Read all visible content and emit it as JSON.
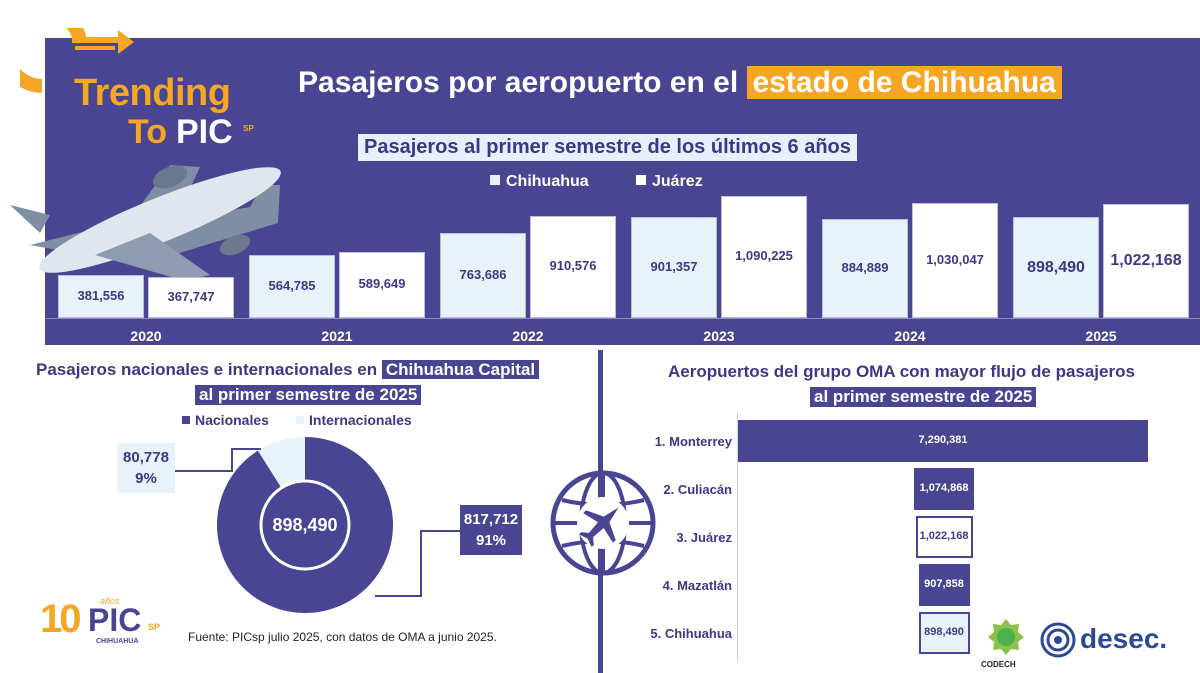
{
  "header": {
    "brand_trending": "Trending",
    "brand_to": "To",
    "brand_pic": "PIC",
    "brand_sp": "SP",
    "title_plain": "Pasajeros por aeropuerto en el",
    "title_highlight": "estado de Chihuahua"
  },
  "chart_data": [
    {
      "type": "bar",
      "title": "Pasajeros al primer semestre de los últimos 6 años",
      "categories": [
        "2020",
        "2021",
        "2022",
        "2023",
        "2024",
        "2025"
      ],
      "series": [
        {
          "name": "Chihuahua",
          "values": [
            381556,
            564785,
            763686,
            901357,
            884889,
            898490
          ],
          "labels": [
            "381,556",
            "564,785",
            "763,686",
            "901,357",
            "884,889",
            "898,490"
          ]
        },
        {
          "name": "Juárez",
          "values": [
            367747,
            589649,
            910576,
            1090225,
            1030047,
            1022168
          ],
          "labels": [
            "367,747",
            "589,649",
            "910,576",
            "1,090,225",
            "1,030,047",
            "1,022,168"
          ]
        }
      ],
      "ylim": [
        0,
        1090225
      ],
      "legend": [
        "Chihuahua",
        "Juárez"
      ],
      "legend_position": "top"
    },
    {
      "type": "pie",
      "title": "Pasajeros nacionales e internacionales en Chihuahua Capital al primer semestre de 2025",
      "title_plain": "Pasajeros nacionales e internacionales en",
      "title_highlight": "Chihuahua Capital",
      "title_line2": "al primer semestre de 2025",
      "center_label": "898,490",
      "slices": [
        {
          "name": "Nacionales",
          "value": 817712,
          "value_label": "817,712",
          "percent_label": "91%"
        },
        {
          "name": "Internacionales",
          "value": 80778,
          "value_label": "80,778",
          "percent_label": "9%"
        }
      ],
      "legend_position": "top"
    },
    {
      "type": "bar",
      "orientation": "horizontal",
      "title": "Aeropuertos del grupo OMA con mayor flujo de pasajeros al primer semestre de 2025",
      "title_line1": "Aeropuertos del grupo OMA con mayor flujo de pasajeros",
      "title_line2": "al primer semestre de 2025",
      "categories": [
        "1. Monterrey",
        "2. Culiacán",
        "3. Juárez",
        "4. Mazatlán",
        "5. Chihuahua"
      ],
      "values": [
        7290381,
        1074868,
        1022168,
        907858,
        898490
      ],
      "labels": [
        "7,290,381",
        "1,074,868",
        "1,022,168",
        "907,858",
        "898,490"
      ],
      "styles": [
        "fill",
        "fill",
        "outline",
        "fill",
        "light"
      ]
    }
  ],
  "colors": {
    "brand_purple": "#4a4593",
    "accent_orange": "#f6a623",
    "light_blue": "#e8f2fb",
    "white": "#ffffff"
  },
  "footer": {
    "badge_10": "10",
    "badge_anos": "años",
    "badge_pic": "PIC",
    "badge_sp": "SP",
    "badge_city": "CHIHUAHUA",
    "source": "Fuente:  PICsp julio 2025, con datos de OMA a junio 2025.",
    "codech": "CODECH",
    "desec": "desec."
  }
}
